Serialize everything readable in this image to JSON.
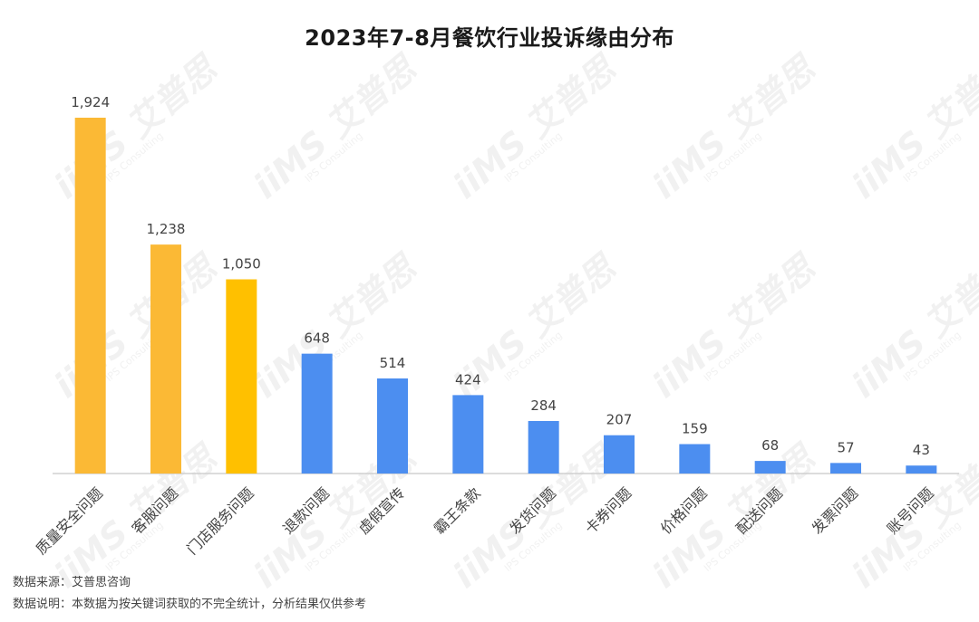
{
  "chart_data": {
    "type": "bar",
    "title": "2023年7-8月餐饮行业投诉缘由分布",
    "categories": [
      "质量安全问题",
      "客服问题",
      "门店服务问题",
      "退款问题",
      "虚假宣传",
      "霸王条款",
      "发货问题",
      "卡券问题",
      "价格问题",
      "配送问题",
      "发票问题",
      "账号问题"
    ],
    "values": [
      1924,
      1238,
      1050,
      648,
      514,
      424,
      284,
      207,
      159,
      68,
      57,
      43
    ],
    "value_labels": [
      "1,924",
      "1,238",
      "1,050",
      "648",
      "514",
      "424",
      "284",
      "207",
      "159",
      "68",
      "57",
      "43"
    ],
    "bar_colors": [
      "#FBB935",
      "#FBB935",
      "#FFC000",
      "#4C8EF0",
      "#4C8EF0",
      "#4C8EF0",
      "#4C8EF0",
      "#4C8EF0",
      "#4C8EF0",
      "#4C8EF0",
      "#4C8EF0",
      "#4C8EF0"
    ],
    "ylim": [
      0,
      1924
    ],
    "grid": false,
    "xlabel": "",
    "ylabel": ""
  },
  "watermark": {
    "logo": "iiMS 艾普思",
    "sub": "IPS Consulting"
  },
  "footer": {
    "source": "数据来源：艾普思咨询",
    "note": "数据说明：本数据为按关键词获取的不完全统计，分析结果仅供参考"
  }
}
